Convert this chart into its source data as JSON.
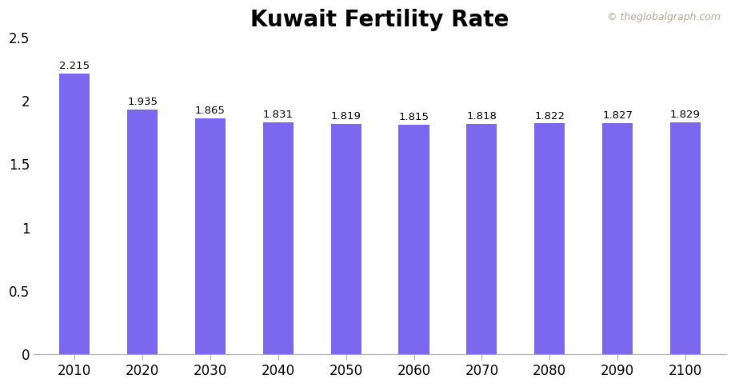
{
  "title": "Kuwait Fertility Rate",
  "title_fontsize": 20,
  "title_fontweight": "bold",
  "categories": [
    "2010",
    "2020",
    "2030",
    "2040",
    "2050",
    "2060",
    "2070",
    "2080",
    "2090",
    "2100"
  ],
  "values": [
    2.215,
    1.935,
    1.865,
    1.831,
    1.819,
    1.815,
    1.818,
    1.822,
    1.827,
    1.829
  ],
  "bar_color": "#7B68EE",
  "ylim": [
    0,
    2.5
  ],
  "yticks": [
    0,
    0.5,
    1,
    1.5,
    2,
    2.5
  ],
  "ytick_labels": [
    "0",
    "0.5",
    "1",
    "1.5",
    "2",
    "2.5"
  ],
  "background_color": "#ffffff",
  "label_fontsize": 9.5,
  "tick_fontsize": 12,
  "bar_width": 0.45,
  "watermark": "© theglobalgraph.com",
  "watermark_color": "#b0a898",
  "watermark_fontsize": 9
}
